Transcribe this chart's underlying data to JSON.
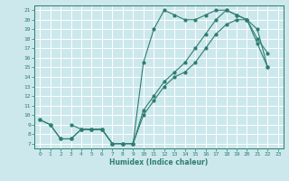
{
  "title": "",
  "xlabel": "Humidex (Indice chaleur)",
  "ylabel": "",
  "xlim": [
    -0.5,
    23.5
  ],
  "ylim": [
    6.5,
    21.5
  ],
  "xticks": [
    0,
    1,
    2,
    3,
    4,
    5,
    6,
    7,
    8,
    9,
    10,
    11,
    12,
    13,
    14,
    15,
    16,
    17,
    18,
    19,
    20,
    21,
    22,
    23
  ],
  "yticks": [
    7,
    8,
    9,
    10,
    11,
    12,
    13,
    14,
    15,
    16,
    17,
    18,
    19,
    20,
    21
  ],
  "bg_color": "#cce8ec",
  "grid_color": "#ffffff",
  "line_color": "#2e7d72",
  "line1_x": [
    0,
    1,
    2,
    3,
    4,
    5,
    6,
    7,
    8,
    9,
    10,
    11,
    12,
    13,
    14,
    15,
    16,
    17,
    18,
    19,
    20,
    21,
    22
  ],
  "line1_y": [
    9.5,
    9.0,
    7.5,
    7.5,
    8.5,
    8.5,
    8.5,
    7.0,
    7.0,
    7.0,
    15.5,
    19.0,
    21.0,
    20.5,
    20.0,
    20.0,
    20.5,
    21.0,
    21.0,
    20.5,
    20.0,
    18.0,
    16.5
  ],
  "line2_x": [
    0,
    1,
    2,
    3,
    4,
    5,
    6,
    7,
    8,
    9,
    10,
    11,
    12,
    13,
    14,
    15,
    16,
    17,
    18,
    19,
    20,
    21,
    22
  ],
  "line2_y": [
    9.5,
    9.0,
    7.5,
    7.5,
    8.5,
    8.5,
    8.5,
    7.0,
    7.0,
    7.0,
    10.0,
    11.5,
    13.0,
    14.0,
    14.5,
    15.5,
    17.0,
    18.5,
    19.5,
    20.0,
    20.0,
    19.0,
    15.0
  ],
  "line3_x": [
    3,
    4,
    5,
    6,
    7,
    8,
    9,
    10,
    11,
    12,
    13,
    14,
    15,
    16,
    17,
    18,
    19,
    20,
    21,
    22
  ],
  "line3_y": [
    9.0,
    8.5,
    8.5,
    8.5,
    7.0,
    7.0,
    7.0,
    10.5,
    12.0,
    13.5,
    14.5,
    15.5,
    17.0,
    18.5,
    20.0,
    21.0,
    20.5,
    20.0,
    17.5,
    15.0
  ]
}
